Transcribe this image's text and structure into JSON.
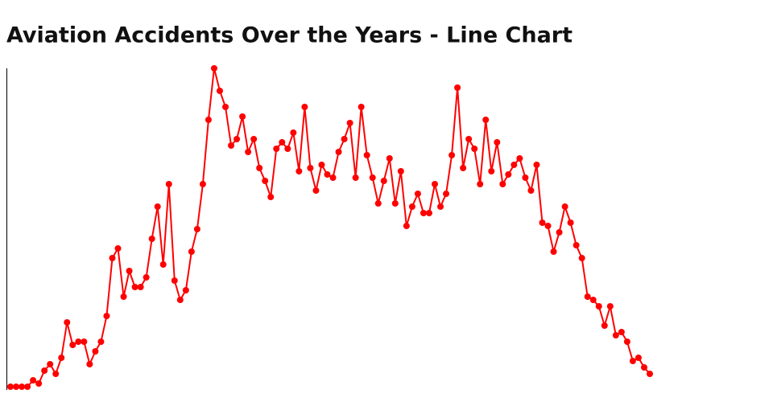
{
  "chart_data": {
    "type": "line",
    "title": "Aviation Accidents Over the Years - Line Chart",
    "color": "#ff0000",
    "values": [
      1,
      1,
      1,
      1,
      3,
      2,
      6,
      8,
      5,
      10,
      21,
      14,
      15,
      15,
      8,
      12,
      15,
      23,
      41,
      44,
      29,
      37,
      32,
      32,
      35,
      47,
      57,
      39,
      64,
      34,
      28,
      31,
      43,
      50,
      64,
      84,
      100,
      93,
      88,
      76,
      78,
      85,
      74,
      78,
      69,
      65,
      60,
      75,
      77,
      75,
      80,
      68,
      88,
      69,
      62,
      70,
      67,
      66,
      74,
      78,
      83,
      66,
      88,
      73,
      66,
      58,
      65,
      72,
      58,
      68,
      51,
      57,
      61,
      55,
      55,
      64,
      57,
      61,
      73,
      94,
      69,
      78,
      75,
      64,
      84,
      68,
      77,
      64,
      67,
      70,
      72,
      66,
      62,
      70,
      52,
      51,
      43,
      49,
      57,
      52,
      45,
      41,
      29,
      28,
      26,
      20,
      26,
      17,
      18,
      15,
      9,
      10,
      7,
      5
    ],
    "ylim": [
      0,
      100
    ]
  }
}
